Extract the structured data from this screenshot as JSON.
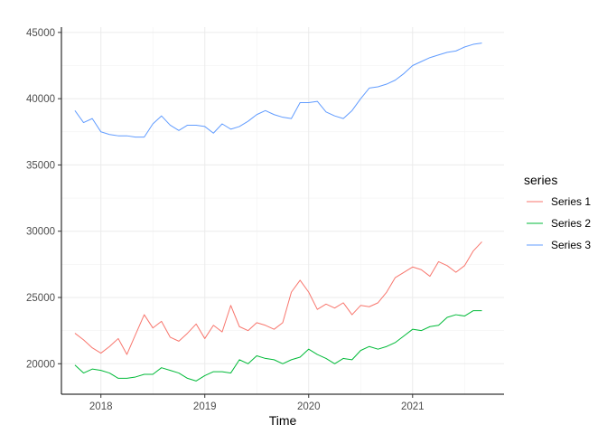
{
  "chart_data": {
    "type": "line",
    "title": "",
    "xlabel": "Time",
    "ylabel": "",
    "xlim": [
      2017.62,
      2021.88
    ],
    "ylim": [
      17700,
      45400
    ],
    "x_ticks": [
      2018,
      2019,
      2020,
      2021
    ],
    "x_tick_labels": [
      "2018",
      "2019",
      "2020",
      "2021"
    ],
    "y_ticks": [
      20000,
      25000,
      30000,
      35000,
      40000,
      45000
    ],
    "y_tick_labels": [
      "20000",
      "25000",
      "30000",
      "35000",
      "40000",
      "45000"
    ],
    "grid": true,
    "legend": {
      "title": "series",
      "placement": "right"
    },
    "x": [
      2017.75,
      2017.833,
      2017.917,
      2018.0,
      2018.083,
      2018.167,
      2018.25,
      2018.333,
      2018.417,
      2018.5,
      2018.583,
      2018.667,
      2018.75,
      2018.833,
      2018.917,
      2019.0,
      2019.083,
      2019.167,
      2019.25,
      2019.333,
      2019.417,
      2019.5,
      2019.583,
      2019.667,
      2019.75,
      2019.833,
      2019.917,
      2020.0,
      2020.083,
      2020.167,
      2020.25,
      2020.333,
      2020.417,
      2020.5,
      2020.583,
      2020.667,
      2020.75,
      2020.833,
      2020.917,
      2021.0,
      2021.083,
      2021.167,
      2021.25,
      2021.333,
      2021.417,
      2021.5,
      2021.583,
      2021.667
    ],
    "series": [
      {
        "name": "Series 1",
        "color": "#F8766D",
        "values": [
          22300,
          21800,
          21200,
          20800,
          21300,
          21900,
          20700,
          22200,
          23700,
          22700,
          23200,
          22000,
          21700,
          22300,
          23000,
          21900,
          22900,
          22400,
          24400,
          22800,
          22500,
          23100,
          22900,
          22600,
          23100,
          25400,
          26300,
          25400,
          24100,
          24500,
          24200,
          24600,
          23700,
          24400,
          24300,
          24600,
          25400,
          26500,
          26900,
          27300,
          27100,
          26600,
          27700,
          27400,
          26900,
          27400,
          28500,
          29200
        ]
      },
      {
        "name": "Series 2",
        "color": "#00BA38",
        "values": [
          19900,
          19300,
          19600,
          19500,
          19300,
          18900,
          18900,
          19000,
          19200,
          19200,
          19700,
          19500,
          19300,
          18900,
          18700,
          19100,
          19400,
          19400,
          19300,
          20300,
          20000,
          20600,
          20400,
          20300,
          20000,
          20300,
          20500,
          21100,
          20700,
          20400,
          20000,
          20400,
          20300,
          21000,
          21300,
          21100,
          21300,
          21600,
          22100,
          22600,
          22500,
          22800,
          22900,
          23500,
          23700,
          23600,
          24000,
          24000
        ]
      },
      {
        "name": "Series 3",
        "color": "#619CFF",
        "values": [
          39100,
          38200,
          38500,
          37500,
          37300,
          37200,
          37200,
          37100,
          37100,
          38100,
          38700,
          38000,
          37600,
          38000,
          38000,
          37900,
          37400,
          38100,
          37700,
          37900,
          38300,
          38800,
          39100,
          38800,
          38600,
          38500,
          39700,
          39700,
          39800,
          39000,
          38700,
          38500,
          39100,
          40000,
          40800,
          40900,
          41100,
          41400,
          41900,
          42500,
          42800,
          43100,
          43300,
          43500,
          43600,
          43900,
          44100,
          44200
        ]
      }
    ]
  }
}
